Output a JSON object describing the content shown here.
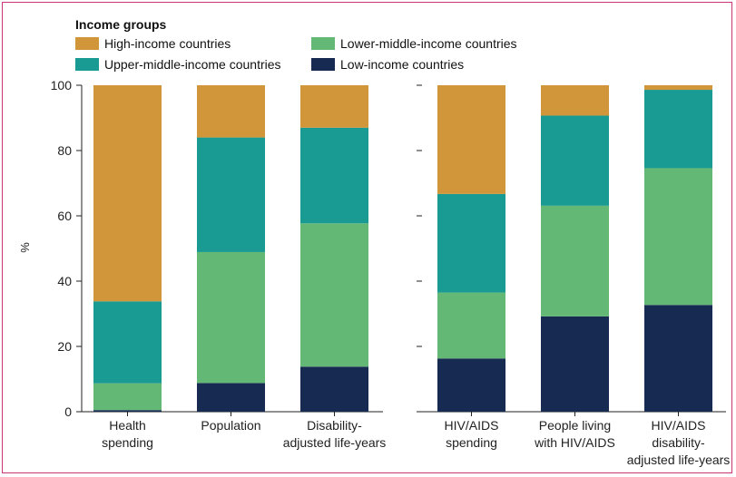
{
  "legend": {
    "title": "Income groups",
    "items": [
      {
        "key": "high",
        "label": "High-income countries",
        "color": "#d1963a"
      },
      {
        "key": "lower_middle",
        "label": "Lower-middle-income countries",
        "color": "#62b874"
      },
      {
        "key": "upper_middle",
        "label": "Upper-middle-income countries",
        "color": "#199a93"
      },
      {
        "key": "low",
        "label": "Low-income countries",
        "color": "#172a52"
      }
    ]
  },
  "chart_data": {
    "type": "bar",
    "stacked": true,
    "ylabel": "%",
    "ylim": [
      0,
      100
    ],
    "yticks": [
      0,
      20,
      40,
      60,
      80,
      100
    ],
    "grid": false,
    "legend_position": "top-left",
    "panels": [
      {
        "categories": [
          [
            "Health",
            "spending"
          ],
          [
            "Population"
          ],
          [
            "Disability-",
            "adjusted life-years"
          ]
        ],
        "series": [
          {
            "name": "Low-income countries",
            "key": "low",
            "values": [
              0.5,
              8.8,
              13.8
            ]
          },
          {
            "name": "Lower-middle-income countries",
            "key": "lower_middle",
            "values": [
              8.2,
              40.1,
              43.9
            ]
          },
          {
            "name": "Upper-middle-income countries",
            "key": "upper_middle",
            "values": [
              25.1,
              35.1,
              29.3
            ]
          },
          {
            "name": "High-income countries",
            "key": "high",
            "values": [
              66.2,
              16.0,
              13.0
            ]
          }
        ]
      },
      {
        "categories": [
          [
            "HIV/AIDS",
            "spending"
          ],
          [
            "People living",
            "with HIV/AIDS"
          ],
          [
            "HIV/AIDS",
            "disability-",
            "adjusted life-years"
          ]
        ],
        "series": [
          {
            "name": "Low-income countries",
            "key": "low",
            "values": [
              16.3,
              29.2,
              32.7
            ]
          },
          {
            "name": "Lower-middle-income countries",
            "key": "lower_middle",
            "values": [
              20.2,
              33.9,
              41.9
            ]
          },
          {
            "name": "Upper-middle-income countries",
            "key": "upper_middle",
            "values": [
              30.2,
              27.6,
              24.0
            ]
          },
          {
            "name": "High-income countries",
            "key": "high",
            "values": [
              33.3,
              9.3,
              1.4
            ]
          }
        ]
      }
    ]
  }
}
